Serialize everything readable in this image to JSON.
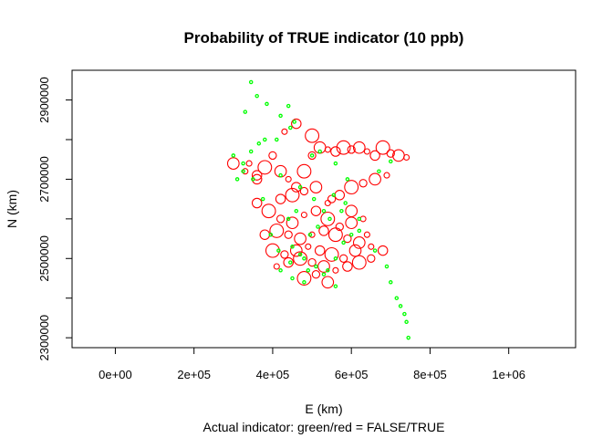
{
  "chart_data": {
    "type": "scatter",
    "title": "Probability of TRUE indicator (10 ppb)",
    "xlabel": "E (km)",
    "ylabel": "N (km)",
    "caption": "Actual indicator: green/red = FALSE/TRUE",
    "xlim": [
      -110000,
      1170000
    ],
    "ylim": [
      2275000,
      2975000
    ],
    "x_ticks": [
      0,
      200000,
      400000,
      600000,
      800000,
      1000000
    ],
    "x_tick_labels": [
      "0e+00",
      "2e+05",
      "4e+05",
      "6e+05",
      "8e+05",
      "1e+06"
    ],
    "y_ticks": [
      2300000,
      2500000,
      2700000,
      2900000
    ],
    "y_tick_labels": [
      "2300000",
      "2500000",
      "2700000",
      "2900000"
    ],
    "y_minor_ticks": [
      2400000,
      2600000,
      2800000
    ],
    "colors": {
      "false": "#00ff00",
      "true": "#ff0000"
    },
    "series": [
      {
        "name": "FALSE",
        "color": "#00ff00",
        "x": [
          345000,
          360000,
          330000,
          385000,
          420000,
          300000,
          325000,
          365000,
          410000,
          445000,
          440000,
          455000,
          500000,
          520000,
          560000,
          590000,
          670000,
          700000,
          420000,
          470000,
          505000,
          530000,
          555000,
          585000,
          620000,
          350000,
          375000,
          440000,
          460000,
          495000,
          515000,
          545000,
          575000,
          480000,
          510000,
          540000,
          560000,
          395000,
          415000,
          445000,
          420000,
          450000,
          480000,
          530000,
          560000,
          620000,
          660000,
          690000,
          700000,
          715000,
          725000,
          735000,
          740000,
          745000,
          580000,
          600000,
          380000,
          345000,
          325000,
          310000,
          450000,
          470000,
          490000
        ],
        "y": [
          2945000,
          2910000,
          2870000,
          2890000,
          2860000,
          2760000,
          2740000,
          2790000,
          2800000,
          2830000,
          2885000,
          2845000,
          2760000,
          2770000,
          2740000,
          2700000,
          2720000,
          2745000,
          2710000,
          2680000,
          2650000,
          2620000,
          2660000,
          2640000,
          2600000,
          2700000,
          2650000,
          2600000,
          2620000,
          2560000,
          2580000,
          2600000,
          2620000,
          2500000,
          2480000,
          2470000,
          2500000,
          2560000,
          2520000,
          2490000,
          2470000,
          2450000,
          2440000,
          2460000,
          2430000,
          2570000,
          2520000,
          2480000,
          2440000,
          2400000,
          2380000,
          2360000,
          2340000,
          2300000,
          2540000,
          2560000,
          2800000,
          2770000,
          2720000,
          2700000,
          2530000,
          2510000,
          2470000
        ]
      },
      {
        "name": "TRUE",
        "color": "#ff0000",
        "x": [
          340000,
          360000,
          380000,
          400000,
          420000,
          440000,
          460000,
          480000,
          500000,
          520000,
          540000,
          560000,
          580000,
          600000,
          620000,
          640000,
          660000,
          680000,
          700000,
          720000,
          740000,
          420000,
          450000,
          480000,
          510000,
          540000,
          570000,
          600000,
          630000,
          660000,
          690000,
          360000,
          390000,
          420000,
          450000,
          480000,
          510000,
          540000,
          570000,
          600000,
          630000,
          380000,
          410000,
          440000,
          470000,
          500000,
          530000,
          560000,
          590000,
          620000,
          650000,
          680000,
          400000,
          430000,
          460000,
          490000,
          520000,
          550000,
          580000,
          610000,
          410000,
          440000,
          470000,
          500000,
          530000,
          560000,
          590000,
          620000,
          650000,
          300000,
          330000,
          360000,
          480000,
          510000,
          540000,
          430000,
          460000,
          500000,
          550000,
          600000,
          640000
        ],
        "y": [
          2740000,
          2710000,
          2730000,
          2760000,
          2720000,
          2700000,
          2680000,
          2720000,
          2760000,
          2780000,
          2775000,
          2770000,
          2780000,
          2775000,
          2780000,
          2770000,
          2760000,
          2780000,
          2765000,
          2760000,
          2755000,
          2650000,
          2660000,
          2670000,
          2680000,
          2640000,
          2660000,
          2680000,
          2690000,
          2700000,
          2710000,
          2640000,
          2620000,
          2600000,
          2590000,
          2610000,
          2620000,
          2600000,
          2580000,
          2590000,
          2600000,
          2560000,
          2570000,
          2560000,
          2550000,
          2560000,
          2570000,
          2560000,
          2550000,
          2540000,
          2530000,
          2520000,
          2520000,
          2510000,
          2520000,
          2530000,
          2520000,
          2510000,
          2500000,
          2520000,
          2480000,
          2490000,
          2500000,
          2490000,
          2480000,
          2470000,
          2480000,
          2490000,
          2500000,
          2740000,
          2720000,
          2700000,
          2450000,
          2460000,
          2440000,
          2820000,
          2840000,
          2810000,
          2650000,
          2620000,
          2560000
        ]
      }
    ]
  }
}
